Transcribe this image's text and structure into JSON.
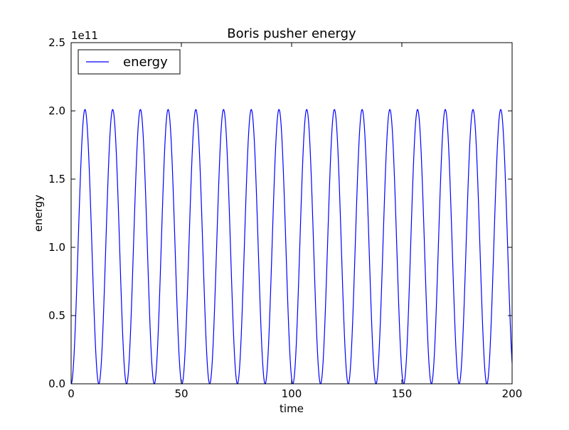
{
  "chart_data": {
    "type": "line",
    "title": "Boris pusher energy",
    "xlabel": "time",
    "ylabel": "energy",
    "y_offset_label": "1e11",
    "xlim": [
      0,
      200
    ],
    "ylim": [
      0,
      250000000000
    ],
    "xticks": [
      0,
      50,
      100,
      150,
      200
    ],
    "xtick_labels": [
      "0",
      "50",
      "100",
      "150",
      "200"
    ],
    "yticks": [
      0,
      50000000000,
      100000000000,
      150000000000,
      200000000000,
      250000000000
    ],
    "ytick_labels": [
      "0.0",
      "0.5",
      "1.0",
      "1.5",
      "2.0",
      "2.5"
    ],
    "grid": false,
    "legend_position": "top-left",
    "series": [
      {
        "name": "energy",
        "color": "#0000ff",
        "waveform": "sin-squared",
        "peak": 201000000000,
        "min": 0,
        "period": 12.57,
        "x_start": 0,
        "x_end": 200,
        "first_peak_x": 6.28,
        "trough_x": [
          0,
          12.57,
          25.13,
          37.7,
          50.27,
          62.83,
          75.4,
          87.96,
          100.53,
          113.1,
          125.66,
          138.23,
          150.8,
          163.36,
          175.93,
          188.5
        ]
      }
    ]
  }
}
